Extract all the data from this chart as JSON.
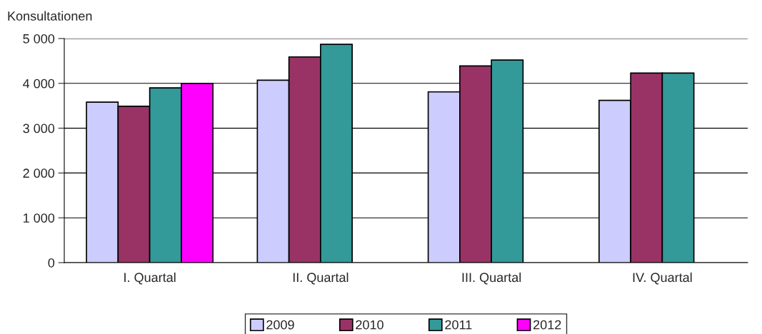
{
  "chart_data": {
    "type": "bar",
    "ylabel": "Konsultationen",
    "categories": [
      "I. Quartal",
      "II. Quartal",
      "III. Quartal",
      "IV. Quartal"
    ],
    "series": [
      {
        "name": "2009",
        "color": "#ccccff",
        "values": [
          3580,
          4070,
          3810,
          3620
        ]
      },
      {
        "name": "2010",
        "color": "#993366",
        "values": [
          3490,
          4590,
          4390,
          4230
        ]
      },
      {
        "name": "2011",
        "color": "#339999",
        "values": [
          3900,
          4870,
          4520,
          4230
        ]
      },
      {
        "name": "2012",
        "color": "#ff00ff",
        "values": [
          4000,
          null,
          null,
          null
        ]
      }
    ],
    "ylim": [
      0,
      5000
    ],
    "yticks": [
      {
        "value": 0,
        "label": "0"
      },
      {
        "value": 1000,
        "label": "1 000"
      },
      {
        "value": 2000,
        "label": "2 000"
      },
      {
        "value": 3000,
        "label": "3 000"
      },
      {
        "value": 4000,
        "label": "4 000"
      },
      {
        "value": 5000,
        "label": "5 000"
      }
    ],
    "grid": "y",
    "legend": "bottom"
  }
}
